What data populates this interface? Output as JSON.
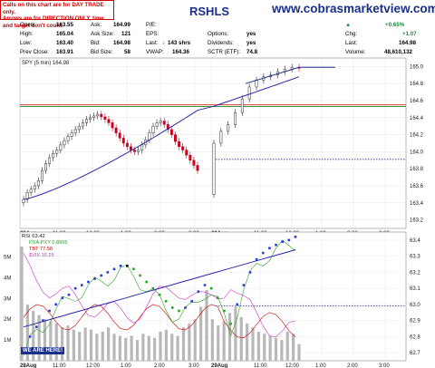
{
  "header": {
    "website": "www.cobrasmarketview.com",
    "ticker_fragment": "RSHLS",
    "note_line1": "Calls on this chart are for DAY TRADE only.",
    "note_line2": "Arrows are for DIRECTION ONLY, time and target don't count.",
    "quote": {
      "open_label": "Open:",
      "open_value": "163.55",
      "high_label": "High:",
      "high_value": "165.04",
      "low_label": "Low:",
      "low_value": "163.40",
      "prevclose_label": "Prev Close:",
      "prevclose_value": "163.91",
      "ask_label": "Ask:",
      "ask_value": "164.99",
      "asksize_label": "Ask Size:",
      "asksize_value": "121",
      "bid_label": "Bid:",
      "bid_value": "164.98",
      "bidsize_label": "Bid Size:",
      "bidsize_value": "58",
      "pe_label": "P/E:",
      "pe_value": "",
      "eps_label": "EPS:",
      "eps_value": "",
      "last_label": "Last:",
      "last_value": "143 shrs",
      "vwap_label": "VWAP:",
      "vwap_value": "164.36",
      "options_label": "Options:",
      "options_value": "yes",
      "dividends_label": "Dividends:",
      "dividends_value": "yes",
      "sctr_label": "SCTR (ETF):",
      "sctr_value": "74.8",
      "pct_change": "+0.65%",
      "chg_label": "Chg:",
      "chg_value": "+1.07",
      "last2_label": "Last:",
      "last2_value": "164.98",
      "volume_label": "Volume:",
      "volume_value": "48,610,132"
    }
  },
  "colors": {
    "up_candle": "#2a2a2a",
    "down_candle": "#cc0022",
    "ma_line": "#2828a8",
    "resistance": "#cc2222",
    "support": "#228822",
    "pointer": "#1b2f8a",
    "rsi_up": "#2a3cd8",
    "rsi_down": "#22a822",
    "rsi_neutral": "#000000",
    "pxa_line": "#2ca02c",
    "tbt_line": "#cc0000",
    "vix_line": "#cc33cc",
    "volume_bar": "#b8b8b8"
  },
  "chart_data": [
    {
      "type": "candlestick",
      "title": "",
      "legend": "SPY (5 min) 164.98",
      "x_tick_labels": [
        "28Aug",
        "11:00",
        "12:00",
        "1:00",
        "2:00",
        "3:00",
        "29Aug",
        "11:00",
        "12:00",
        "1:00",
        "2:00",
        "3:00"
      ],
      "y_tick_labels": [
        "163.2",
        "163.4",
        "163.6",
        "163.8",
        "164.0",
        "164.2",
        "164.4",
        "164.6",
        "164.8",
        "165.0"
      ],
      "ylim": [
        163.1,
        165.1
      ],
      "closes": [
        163.44,
        163.52,
        163.56,
        163.6,
        163.66,
        163.78,
        163.86,
        163.93,
        163.98,
        164.02,
        164.08,
        164.13,
        164.18,
        164.22,
        164.26,
        164.3,
        164.34,
        164.38,
        164.4,
        164.42,
        164.44,
        164.41,
        164.38,
        164.34,
        164.28,
        164.22,
        164.16,
        164.1,
        164.06,
        164.02,
        164.0,
        164.02,
        164.08,
        164.14,
        164.22,
        164.3,
        164.34,
        164.36,
        164.32,
        164.26,
        164.2,
        164.12,
        164.06,
        164.02,
        163.96,
        163.9,
        163.84,
        163.78,
        164.1,
        164.24,
        164.32,
        164.46,
        164.62,
        164.76,
        164.84,
        164.88,
        164.9,
        164.94,
        164.97,
        164.99,
        164.98
      ],
      "ma_start_value": 163.48,
      "ma_end_value": 164.9,
      "horizontal_lines": [
        {
          "value": 164.55,
          "style": "solid",
          "color": "resistance"
        },
        {
          "value": 164.53,
          "style": "solid",
          "color": "support"
        },
        {
          "value": 163.91,
          "style": "dotted",
          "color": "ma_line"
        }
      ]
    },
    {
      "type": "line",
      "title": "",
      "legend_rsi": "RSI 63.42",
      "legend_pxa": "PXA:PXY 0.8995",
      "legend_tbt": "TBT 77.58",
      "legend_vix": "$VIX 16.25",
      "x_tick_labels": [
        "28Aug",
        "11:00",
        "12:00",
        "1:00",
        "2:00",
        "3:00",
        "29Aug",
        "11:00",
        "12:00",
        "1:00",
        "2:00",
        "3:00"
      ],
      "y_right_tick_labels": [
        "62.7",
        "62.8",
        "62.9",
        "63.0",
        "63.1",
        "63.2",
        "63.3",
        "63.4"
      ],
      "y_left_tick_labels": [
        "1M",
        "2M",
        "3M",
        "4M",
        "5M"
      ],
      "right_ylim": [
        62.65,
        63.45
      ],
      "rsi_values": [
        62.72,
        62.8,
        62.86,
        62.9,
        62.96,
        63.0,
        63.04,
        63.06,
        63.1,
        63.12,
        63.14,
        63.16,
        63.18,
        63.2,
        63.22,
        63.24,
        63.24,
        63.22,
        63.18,
        63.14,
        63.1,
        63.06,
        63.02,
        62.98,
        62.96,
        62.98,
        63.02,
        63.08,
        63.12,
        63.1,
        63.04,
        62.96,
        62.88,
        63.0,
        63.12,
        63.2,
        63.28,
        63.32,
        63.35,
        63.37,
        63.39,
        63.4,
        63.42
      ],
      "rsi_ma_start": 62.86,
      "rsi_ma_end": 63.34,
      "dotted_line_value": 62.99,
      "volume_millions": [
        5.5,
        2.7,
        2.4,
        2.2,
        2.0,
        1.9,
        1.8,
        1.6,
        1.7,
        1.5,
        1.4,
        1.6,
        1.5,
        1.3,
        1.4,
        1.6,
        1.3,
        1.2,
        1.1,
        1.2,
        1.0,
        1.3,
        1.2,
        1.1,
        1.4,
        1.5,
        1.3,
        1.2,
        1.6,
        1.8,
        2.0,
        2.6,
        3.4,
        2.0,
        1.7,
        1.9,
        2.3,
        2.6,
        2.1,
        1.8,
        1.6,
        1.4,
        1.3,
        1.2,
        1.1,
        1.0,
        1.4,
        1.3,
        0.8
      ]
    }
  ],
  "footer": {
    "badge": "WE ARE HERE!"
  }
}
